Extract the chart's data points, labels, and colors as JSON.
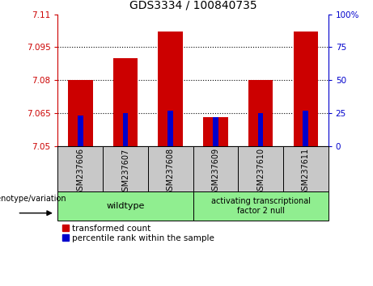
{
  "title": "GDS3334 / 100840735",
  "samples": [
    "GSM237606",
    "GSM237607",
    "GSM237608",
    "GSM237609",
    "GSM237610",
    "GSM237611"
  ],
  "red_values": [
    7.08,
    7.09,
    7.102,
    7.063,
    7.08,
    7.102
  ],
  "blue_values": [
    7.064,
    7.065,
    7.066,
    7.063,
    7.065,
    7.066
  ],
  "ylim": [
    7.05,
    7.11
  ],
  "yticks": [
    7.05,
    7.065,
    7.08,
    7.095,
    7.11
  ],
  "ytick_labels": [
    "7.05",
    "7.065",
    "7.08",
    "7.095",
    "7.11"
  ],
  "y2_ticks": [
    0,
    25,
    50,
    75,
    100
  ],
  "y2_tick_labels": [
    "0",
    "25",
    "50",
    "75",
    "100%"
  ],
  "dotted_lines": [
    7.065,
    7.08,
    7.095
  ],
  "group1_label": "wildtype",
  "group2_label": "activating transcriptional\nfactor 2 null",
  "group_bg_color": "#90EE90",
  "sample_bg_color": "#C8C8C8",
  "bar_bottom": 7.05,
  "legend_red": "transformed count",
  "legend_blue": "percentile rank within the sample",
  "genotype_label": "genotype/variation",
  "red_color": "#CC0000",
  "blue_color": "#0000CC",
  "bar_width": 0.55,
  "blue_bar_width": 0.12,
  "fig_width": 4.61,
  "fig_height": 3.54,
  "dpi": 100
}
